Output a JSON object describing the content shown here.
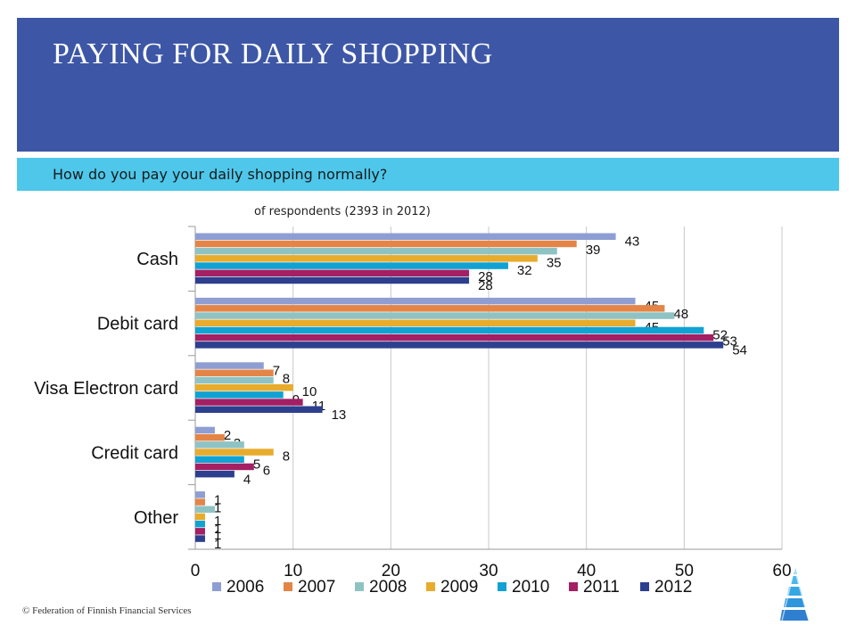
{
  "header": {
    "title": "PAYING FOR DAILY SHOPPING"
  },
  "subheader": {
    "question": "How do you pay your daily shopping normally?"
  },
  "note": "of respondents (2393 in 2012)",
  "footer": {
    "copyright": "© Federation of Finnish Financial Services"
  },
  "chart_data": {
    "type": "bar",
    "orientation": "horizontal",
    "categories": [
      "Cash",
      "Debit card",
      "Visa Electron card",
      "Credit card",
      "Other"
    ],
    "series": [
      {
        "name": "2006",
        "color": "#8e9ed2",
        "values": [
          43,
          45,
          7,
          2,
          1
        ]
      },
      {
        "name": "2007",
        "color": "#e48547",
        "values": [
          39,
          48,
          8,
          3,
          1
        ]
      },
      {
        "name": "2008",
        "color": "#8fc3c3",
        "values": [
          37,
          49,
          8,
          5,
          2
        ]
      },
      {
        "name": "2009",
        "color": "#e8ab2c",
        "values": [
          35,
          45,
          10,
          8,
          1
        ]
      },
      {
        "name": "2010",
        "color": "#10a2d3",
        "values": [
          32,
          52,
          9,
          5,
          1
        ]
      },
      {
        "name": "2011",
        "color": "#a41f63",
        "values": [
          28,
          53,
          11,
          6,
          1
        ]
      },
      {
        "name": "2012",
        "color": "#2d3f8f",
        "values": [
          28,
          54,
          13,
          4,
          1
        ]
      }
    ],
    "data_labels": [
      [
        "43",
        "39",
        "",
        "35",
        "32",
        "28",
        "28"
      ],
      [
        "45",
        "48",
        "",
        "45",
        "52",
        "53",
        "54"
      ],
      [
        "7",
        "8",
        "",
        "10",
        "9",
        "11",
        "13"
      ],
      [
        "2",
        "3",
        "",
        "8",
        "5",
        "6",
        "4"
      ],
      [
        "1",
        "1",
        "",
        "1",
        "1",
        "1",
        "1"
      ]
    ],
    "xlim": [
      0,
      60
    ],
    "xticks": [
      "0",
      "10",
      "20",
      "30",
      "40",
      "50",
      "60"
    ],
    "grid": true,
    "legend": "bottom"
  },
  "logo": {
    "name": "financial-federation-logo-icon"
  }
}
